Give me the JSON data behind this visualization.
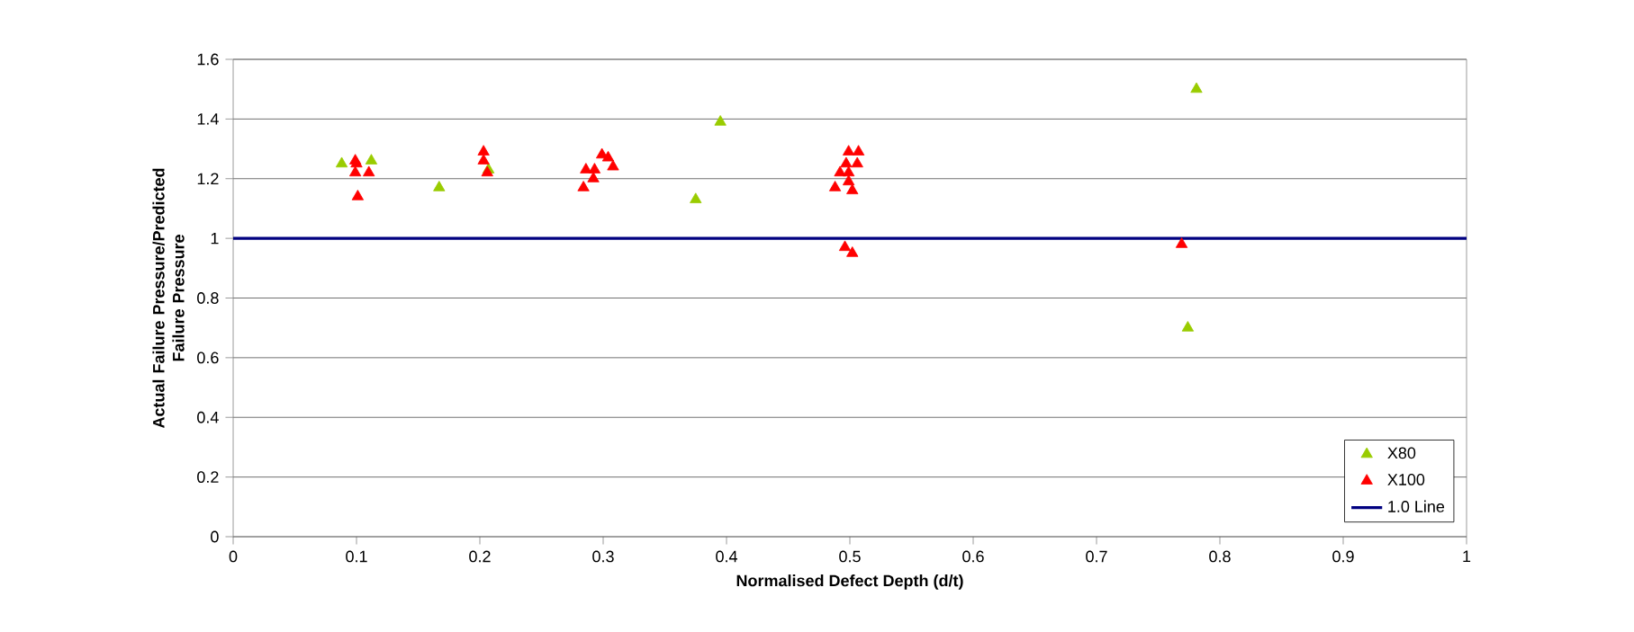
{
  "chart_data": {
    "type": "scatter",
    "xlabel": "Normalised Defect Depth (d/t)",
    "ylabel": "Actual Failure Pressure/Predicted Failure Pressure",
    "xlim": [
      0,
      1
    ],
    "ylim": [
      0,
      1.6
    ],
    "xticks": [
      0,
      0.1,
      0.2,
      0.3,
      0.4,
      0.5,
      0.6,
      0.7,
      0.8,
      0.9,
      1
    ],
    "yticks": [
      0,
      0.2,
      0.4,
      0.6,
      0.8,
      1,
      1.2,
      1.4,
      1.6
    ],
    "grid": "y",
    "legend": "bottom right",
    "series": [
      {
        "name": "X80",
        "color": "#99cc00",
        "marker": "triangle",
        "x": [
          0.088,
          0.112,
          0.167,
          0.207,
          0.375,
          0.395,
          0.781,
          0.774
        ],
        "values": [
          1.25,
          1.26,
          1.17,
          1.23,
          1.13,
          1.39,
          1.5,
          0.7
        ]
      },
      {
        "name": "X100",
        "color": "#ff0000",
        "marker": "triangle",
        "x": [
          0.099,
          0.1,
          0.099,
          0.101,
          0.11,
          0.203,
          0.203,
          0.206,
          0.286,
          0.293,
          0.284,
          0.292,
          0.299,
          0.304,
          0.308,
          0.499,
          0.507,
          0.506,
          0.497,
          0.492,
          0.499,
          0.499,
          0.488,
          0.502,
          0.496,
          0.502,
          0.769
        ],
        "values": [
          1.26,
          1.25,
          1.22,
          1.14,
          1.22,
          1.29,
          1.26,
          1.22,
          1.23,
          1.23,
          1.17,
          1.2,
          1.28,
          1.27,
          1.24,
          1.29,
          1.29,
          1.25,
          1.25,
          1.22,
          1.22,
          1.19,
          1.17,
          1.16,
          0.97,
          0.95,
          0.98
        ]
      },
      {
        "name": "1.0 Line",
        "type": "line",
        "marker": "none",
        "color": "#000080",
        "x": [
          0,
          1
        ],
        "values": [
          1,
          1
        ]
      }
    ]
  }
}
